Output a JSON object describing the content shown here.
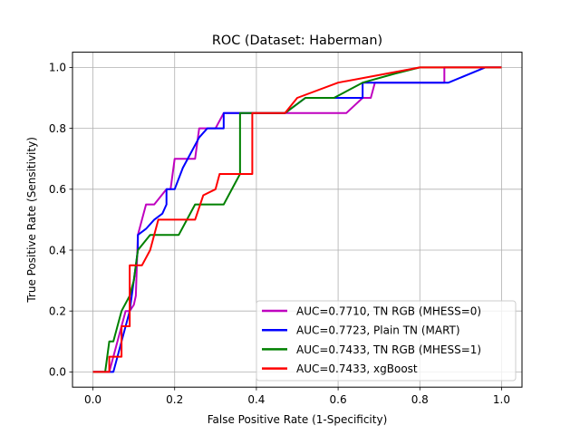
{
  "chart_data": {
    "type": "line",
    "title": "ROC (Dataset: Haberman)",
    "xlabel": "False Positive Rate (1-Specificity)",
    "ylabel": "True Positive Rate (Sensitivity)",
    "xlim": [
      -0.05,
      1.05
    ],
    "ylim": [
      -0.05,
      1.05
    ],
    "xticks": [
      0.0,
      0.2,
      0.4,
      0.6,
      0.8,
      1.0
    ],
    "yticks": [
      0.0,
      0.2,
      0.4,
      0.6,
      0.8,
      1.0
    ],
    "xtick_labels": [
      "0.0",
      "0.2",
      "0.4",
      "0.6",
      "0.8",
      "1.0"
    ],
    "ytick_labels": [
      "0.0",
      "0.2",
      "0.4",
      "0.6",
      "0.8",
      "1.0"
    ],
    "grid": true,
    "legend_position": "lower-right",
    "series": [
      {
        "name": "AUC=0.7710, TN RGB (MHESS=0)",
        "color": "#bf00bf",
        "x": [
          0.0,
          0.04,
          0.05,
          0.06,
          0.07,
          0.08,
          0.09,
          0.1,
          0.105,
          0.11,
          0.12,
          0.13,
          0.15,
          0.18,
          0.19,
          0.2,
          0.25,
          0.26,
          0.3,
          0.32,
          0.4,
          0.47,
          0.55,
          0.62,
          0.66,
          0.68,
          0.69,
          0.86,
          0.86,
          0.88,
          0.96,
          1.0
        ],
        "y": [
          0.0,
          0.0,
          0.05,
          0.1,
          0.15,
          0.2,
          0.2,
          0.22,
          0.25,
          0.45,
          0.5,
          0.55,
          0.55,
          0.6,
          0.6,
          0.7,
          0.7,
          0.8,
          0.8,
          0.85,
          0.85,
          0.85,
          0.85,
          0.85,
          0.9,
          0.9,
          0.95,
          0.95,
          1.0,
          1.0,
          1.0,
          1.0
        ]
      },
      {
        "name": "AUC=0.7723, Plain TN (MART)",
        "color": "#0000ff",
        "x": [
          0.0,
          0.05,
          0.06,
          0.07,
          0.08,
          0.09,
          0.1,
          0.11,
          0.11,
          0.13,
          0.15,
          0.17,
          0.18,
          0.18,
          0.2,
          0.22,
          0.24,
          0.26,
          0.28,
          0.32,
          0.32,
          0.34,
          0.4,
          0.47,
          0.52,
          0.59,
          0.66,
          0.66,
          0.7,
          0.87,
          0.96,
          1.0
        ],
        "y": [
          0.0,
          0.0,
          0.05,
          0.1,
          0.15,
          0.2,
          0.3,
          0.4,
          0.45,
          0.47,
          0.5,
          0.52,
          0.55,
          0.6,
          0.6,
          0.67,
          0.72,
          0.77,
          0.8,
          0.8,
          0.85,
          0.85,
          0.85,
          0.85,
          0.9,
          0.9,
          0.9,
          0.95,
          0.95,
          0.95,
          1.0,
          1.0
        ]
      },
      {
        "name": "AUC=0.7433, TN RGB (MHESS=1)",
        "color": "#008000",
        "x": [
          0.0,
          0.03,
          0.04,
          0.05,
          0.06,
          0.07,
          0.09,
          0.1,
          0.11,
          0.14,
          0.21,
          0.25,
          0.32,
          0.36,
          0.36,
          0.4,
          0.47,
          0.52,
          0.59,
          0.66,
          0.74,
          0.8,
          0.86,
          0.93,
          1.0
        ],
        "y": [
          0.0,
          0.0,
          0.1,
          0.1,
          0.15,
          0.2,
          0.25,
          0.3,
          0.4,
          0.45,
          0.45,
          0.55,
          0.55,
          0.65,
          0.85,
          0.85,
          0.85,
          0.9,
          0.9,
          0.95,
          0.98,
          1.0,
          1.0,
          1.0,
          1.0
        ]
      },
      {
        "name": "AUC=0.7433, xgBoost",
        "color": "#ff0000",
        "x": [
          0.0,
          0.04,
          0.04,
          0.07,
          0.07,
          0.09,
          0.09,
          0.12,
          0.14,
          0.16,
          0.25,
          0.27,
          0.3,
          0.31,
          0.39,
          0.39,
          0.47,
          0.5,
          0.6,
          0.68,
          0.8,
          1.0
        ],
        "y": [
          0.0,
          0.0,
          0.05,
          0.05,
          0.15,
          0.15,
          0.35,
          0.35,
          0.4,
          0.5,
          0.5,
          0.58,
          0.6,
          0.65,
          0.65,
          0.85,
          0.85,
          0.9,
          0.95,
          0.97,
          1.0,
          1.0
        ]
      }
    ]
  }
}
